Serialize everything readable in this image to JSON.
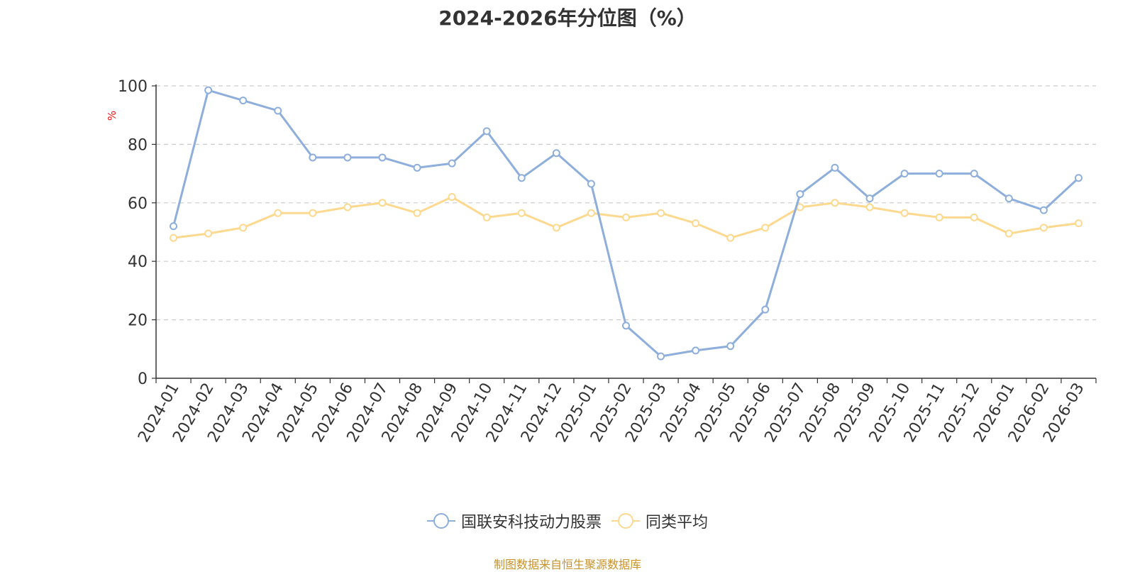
{
  "chart_data": {
    "type": "line",
    "title": "2024-2026年分位图（%）",
    "ylabel": "%",
    "xlabel": "",
    "ylim": [
      0,
      100
    ],
    "yticks": [
      0,
      20,
      40,
      60,
      80,
      100
    ],
    "grid": true,
    "legend_position": "bottom-center",
    "categories": [
      "2024-01",
      "2024-02",
      "2024-03",
      "2024-04",
      "2024-05",
      "2024-06",
      "2024-07",
      "2024-08",
      "2024-09",
      "2024-10",
      "2024-11",
      "2024-12",
      "2025-01",
      "2025-02",
      "2025-03",
      "2025-04",
      "2025-05",
      "2025-06",
      "2025-07",
      "2025-08",
      "2025-09",
      "2025-10",
      "2025-11",
      "2025-12",
      "2026-01",
      "2026-02",
      "2026-03"
    ],
    "series": [
      {
        "name": "国联安科技动力股票",
        "color": "#8eaedb",
        "values": [
          52,
          98.5,
          95,
          91.5,
          75.5,
          75.5,
          75.5,
          72,
          73.5,
          84.5,
          68.5,
          77,
          66.5,
          18,
          7.5,
          9.5,
          11,
          23.5,
          63,
          72,
          61.5,
          70,
          70,
          70,
          61.5,
          57.5,
          68.5
        ]
      },
      {
        "name": "同类平均",
        "color": "#fcd98f",
        "values": [
          48,
          49.5,
          51.5,
          56.5,
          56.5,
          58.5,
          60,
          56.5,
          62,
          55,
          56.5,
          51.5,
          56.5,
          55,
          56.5,
          53,
          48,
          51.5,
          58.5,
          60,
          58.5,
          56.5,
          55,
          55,
          49.5,
          51.5,
          53
        ]
      }
    ]
  },
  "source": "制图数据来自恒生聚源数据库"
}
